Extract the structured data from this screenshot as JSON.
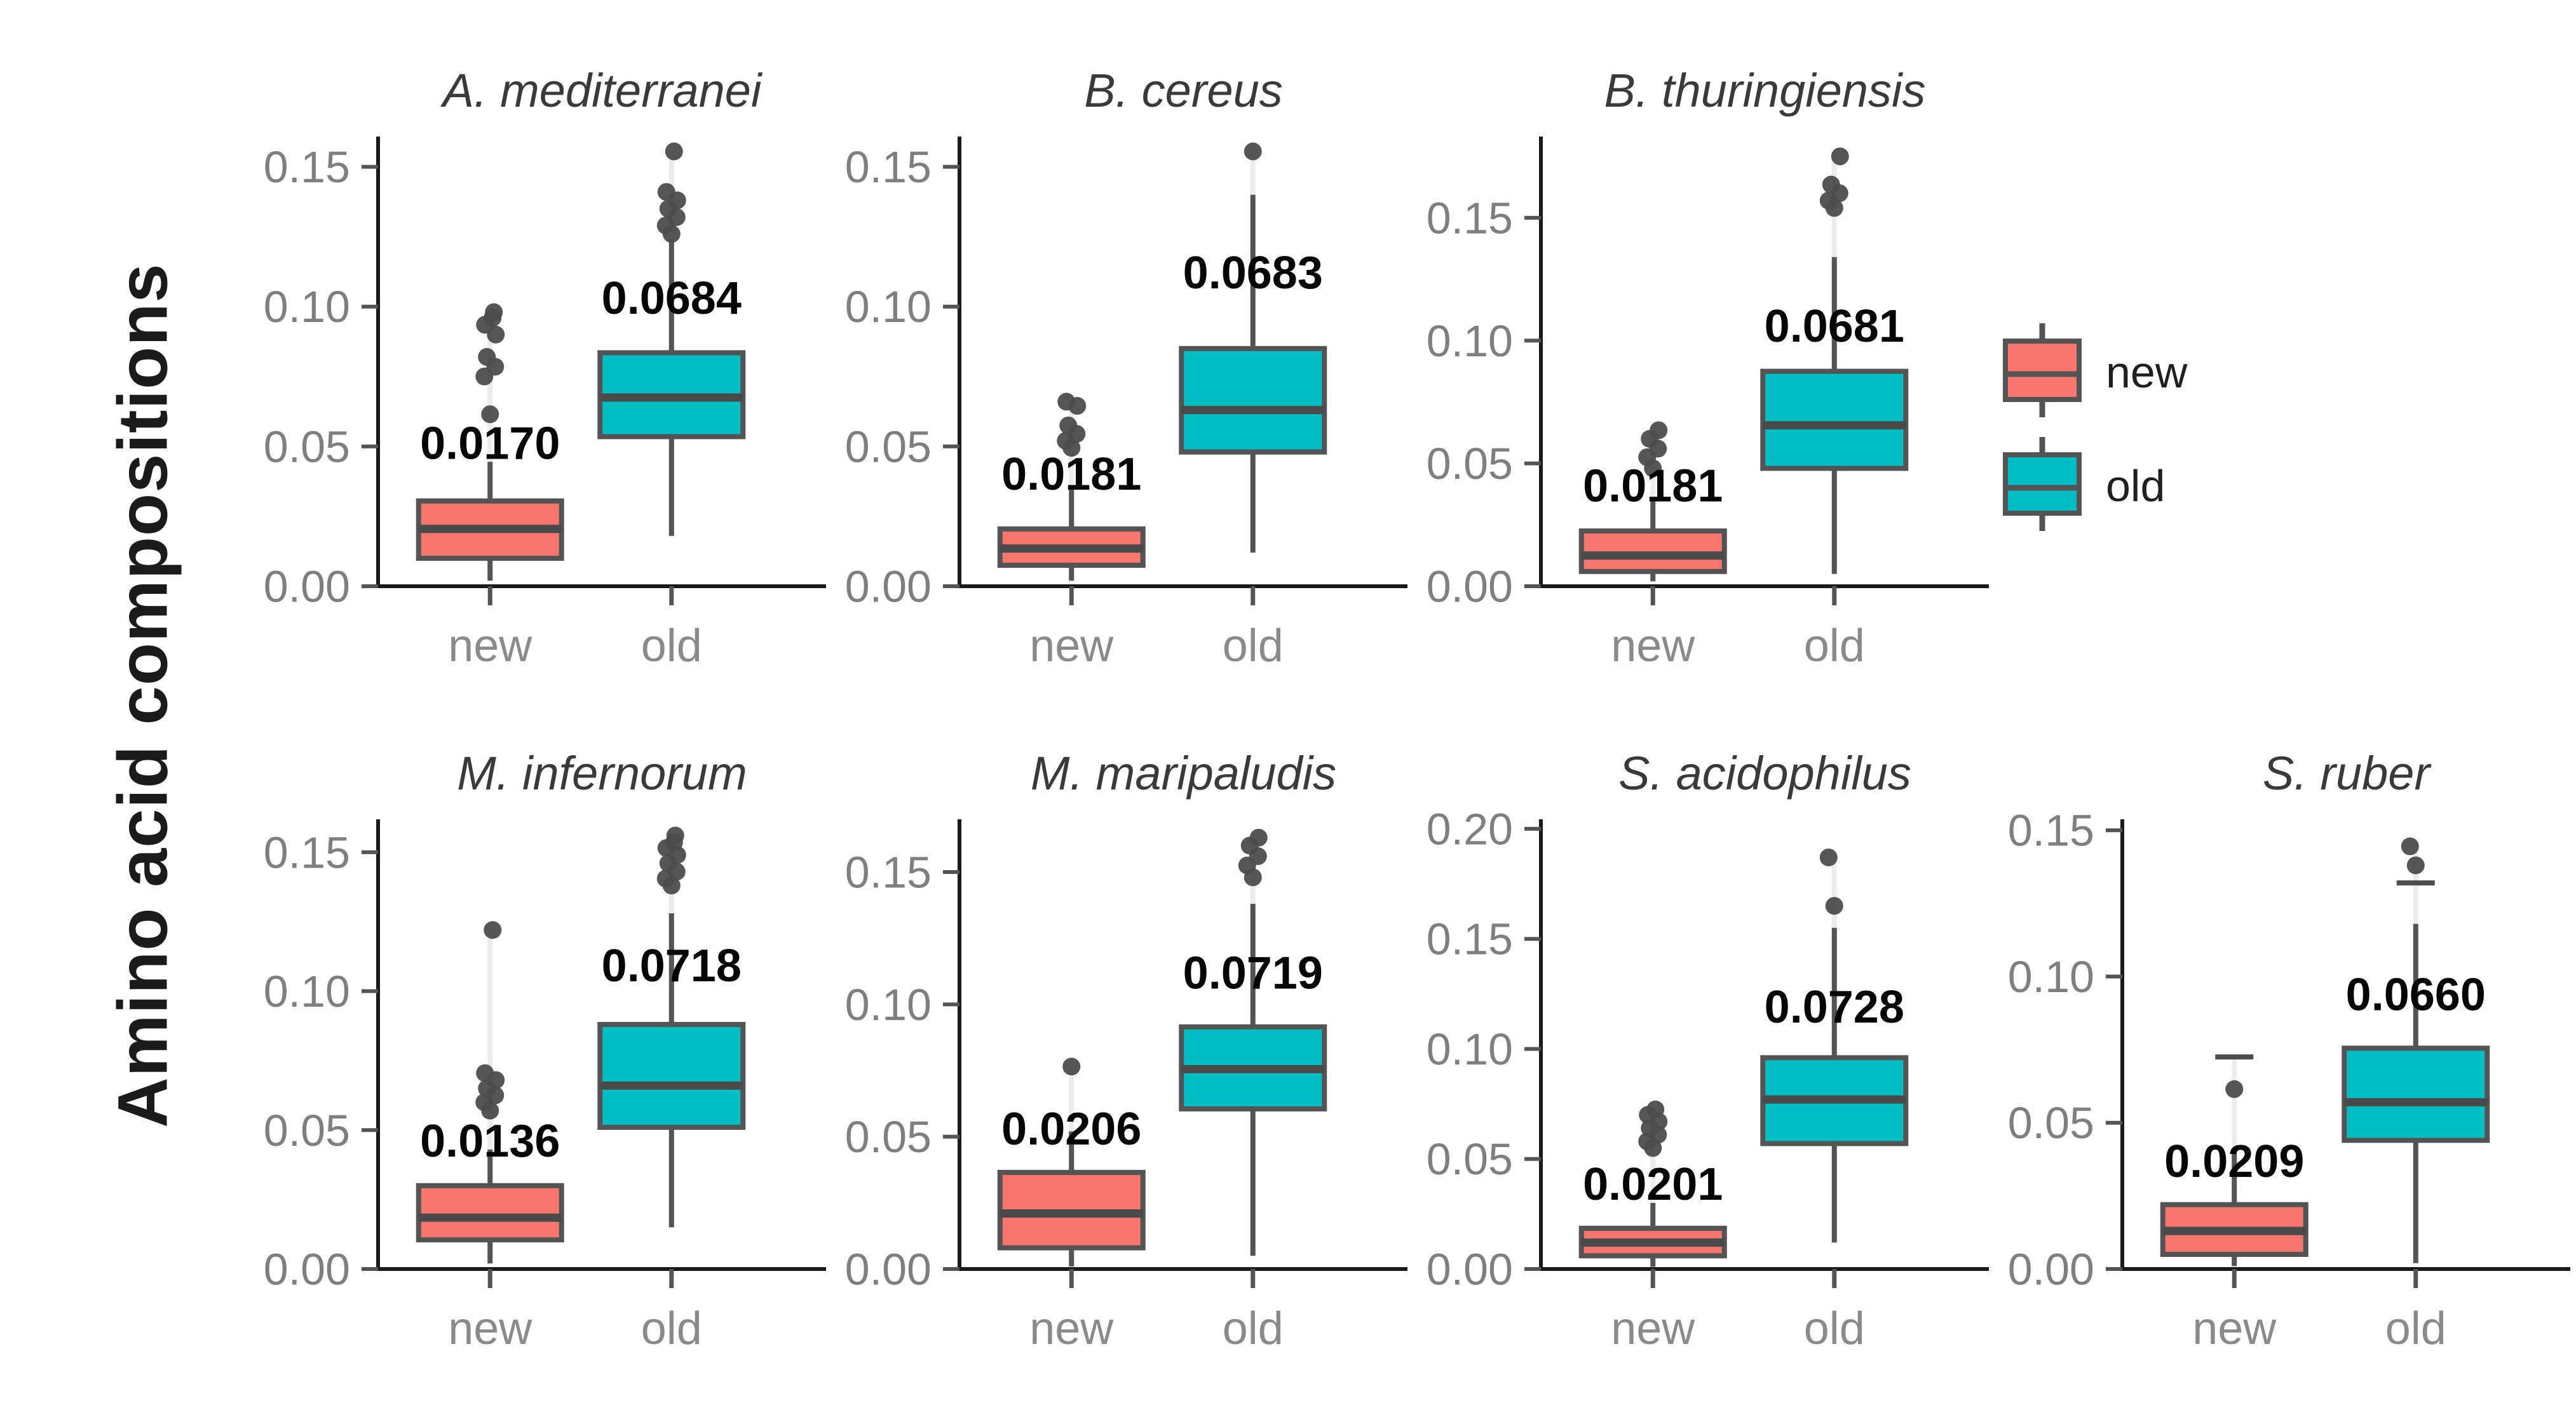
{
  "figure": {
    "y_axis_label": "Amino acid compositions"
  },
  "legend": {
    "items": [
      {
        "label": "new",
        "color": "#F8766D"
      },
      {
        "label": "old",
        "color": "#00BFC4"
      }
    ]
  },
  "chart_data": {
    "type": "boxplot-grid",
    "ylabel": "Amino acid compositions",
    "categories": [
      "new",
      "old"
    ],
    "colors": {
      "new": "#F8766D",
      "old": "#00BFC4"
    },
    "legend_position": "right-of-row-1",
    "grid": "off",
    "panels": [
      {
        "slug": "a-mediterranei",
        "title": "A. mediterranei",
        "row": 1,
        "col": 1,
        "ylim": [
          0,
          0.159
        ],
        "yticks": [
          0,
          0.05,
          0.1,
          0.15
        ],
        "boxes": {
          "new": {
            "low": 0.002,
            "q1": 0.01,
            "median": 0.0205,
            "q3": 0.0305,
            "high": 0.0445,
            "outliers": [
              0.0615,
              0.075,
              0.0785,
              0.082,
              0.09,
              0.0935,
              0.096,
              0.098
            ],
            "dashes": [],
            "mean_label": "0.0170",
            "label_y": 0.0455
          },
          "old": {
            "low": 0.018,
            "q1": 0.0535,
            "median": 0.0675,
            "q3": 0.0835,
            "high": 0.124,
            "outliers": [
              0.126,
              0.129,
              0.132,
              0.135,
              0.138,
              0.141,
              0.1555
            ],
            "dashes": [],
            "mean_label": "0.0684",
            "label_y": 0.0975
          }
        }
      },
      {
        "slug": "b-cereus",
        "title": "B. cereus",
        "row": 1,
        "col": 2,
        "ylim": [
          0,
          0.159
        ],
        "yticks": [
          0,
          0.05,
          0.1,
          0.15
        ],
        "boxes": {
          "new": {
            "low": 0.002,
            "q1": 0.0075,
            "median": 0.0135,
            "q3": 0.0205,
            "high": 0.036,
            "outliers": [
              0.0495,
              0.052,
              0.0545,
              0.0575,
              0.0645,
              0.066
            ],
            "dashes": [],
            "mean_label": "0.0181",
            "label_y": 0.0345
          },
          "old": {
            "low": 0.012,
            "q1": 0.048,
            "median": 0.063,
            "q3": 0.085,
            "high": 0.14,
            "outliers": [
              0.1555
            ],
            "dashes": [],
            "mean_label": "0.0683",
            "label_y": 0.1065
          }
        }
      },
      {
        "slug": "b-thuringiensis",
        "title": "B. thuringiensis",
        "row": 1,
        "col": 3,
        "ylim": [
          0,
          0.181
        ],
        "yticks": [
          0,
          0.05,
          0.1,
          0.15
        ],
        "boxes": {
          "new": {
            "low": 0.002,
            "q1": 0.006,
            "median": 0.0125,
            "q3": 0.0225,
            "high": 0.035,
            "outliers": [
              0.048,
              0.0525,
              0.056,
              0.06,
              0.0635
            ],
            "dashes": [],
            "mean_label": "0.0181",
            "label_y": 0.0345
          },
          "old": {
            "low": 0.005,
            "q1": 0.048,
            "median": 0.0655,
            "q3": 0.0875,
            "high": 0.134,
            "outliers": [
              0.154,
              0.157,
              0.16,
              0.1635,
              0.175
            ],
            "dashes": [],
            "mean_label": "0.0681",
            "label_y": 0.0995
          }
        }
      },
      {
        "slug": "m-infernorum",
        "title": "M. infernorum",
        "row": 2,
        "col": 1,
        "ylim": [
          0,
          0.16
        ],
        "yticks": [
          0,
          0.05,
          0.1,
          0.15
        ],
        "boxes": {
          "new": {
            "low": 0.002,
            "q1": 0.0105,
            "median": 0.0185,
            "q3": 0.03,
            "high": 0.043,
            "outliers": [
              0.057,
              0.06,
              0.0625,
              0.065,
              0.068,
              0.0705,
              0.122
            ],
            "dashes": [],
            "mean_label": "0.0136",
            "label_y": 0.0405
          },
          "old": {
            "low": 0.015,
            "q1": 0.051,
            "median": 0.066,
            "q3": 0.088,
            "high": 0.128,
            "outliers": [
              0.138,
              0.1405,
              0.143,
              0.146,
              0.149,
              0.1515,
              0.1535,
              0.156
            ],
            "dashes": [],
            "mean_label": "0.0718",
            "label_y": 0.1035
          }
        }
      },
      {
        "slug": "m-maripaludis",
        "title": "M. maripaludis",
        "row": 2,
        "col": 2,
        "ylim": [
          0,
          0.168
        ],
        "yticks": [
          0,
          0.05,
          0.1,
          0.15
        ],
        "boxes": {
          "new": {
            "low": 0.001,
            "q1": 0.008,
            "median": 0.021,
            "q3": 0.0365,
            "high": 0.052,
            "outliers": [
              0.0765
            ],
            "dashes": [],
            "mean_label": "0.0206",
            "label_y": 0.047
          },
          "old": {
            "low": 0.005,
            "q1": 0.0605,
            "median": 0.0755,
            "q3": 0.0915,
            "high": 0.138,
            "outliers": [
              0.148,
              0.1525,
              0.156,
              0.16,
              0.163
            ],
            "dashes": [],
            "mean_label": "0.0719",
            "label_y": 0.106
          }
        }
      },
      {
        "slug": "s-acidophilus",
        "title": "S. acidophilus",
        "row": 2,
        "col": 3,
        "ylim": [
          0,
          0.202
        ],
        "yticks": [
          0,
          0.05,
          0.1,
          0.15,
          0.2
        ],
        "boxes": {
          "new": {
            "low": 0.001,
            "q1": 0.006,
            "median": 0.012,
            "q3": 0.0185,
            "high": 0.03,
            "outliers": [
              0.055,
              0.058,
              0.061,
              0.064,
              0.067,
              0.07,
              0.0725
            ],
            "dashes": [],
            "mean_label": "0.0201",
            "label_y": 0.0315
          },
          "old": {
            "low": 0.012,
            "q1": 0.057,
            "median": 0.077,
            "q3": 0.096,
            "high": 0.155,
            "outliers": [
              0.165,
              0.187
            ],
            "dashes": [],
            "mean_label": "0.0728",
            "label_y": 0.112
          }
        }
      },
      {
        "slug": "s-ruber",
        "title": "S. ruber",
        "row": 2,
        "col": 4,
        "ylim": [
          0,
          0.152
        ],
        "yticks": [
          0,
          0.05,
          0.1,
          0.15
        ],
        "boxes": {
          "new": {
            "low": 0.001,
            "q1": 0.005,
            "median": 0.013,
            "q3": 0.022,
            "high": 0.04,
            "outliers": [
              0.0615
            ],
            "dashes": [
              0.0725
            ],
            "mean_label": "0.0209",
            "label_y": 0.0315
          },
          "old": {
            "low": 0.002,
            "q1": 0.044,
            "median": 0.057,
            "q3": 0.0755,
            "high": 0.118,
            "outliers": [
              0.138,
              0.1445
            ],
            "dashes": [
              0.132
            ],
            "mean_label": "0.0660",
            "label_y": 0.0885
          }
        }
      }
    ]
  }
}
